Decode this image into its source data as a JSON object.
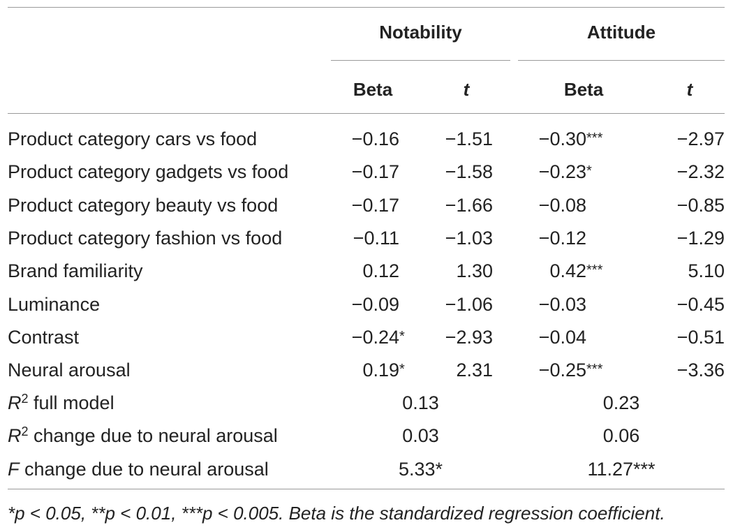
{
  "headers": {
    "groups": [
      "Notability",
      "Attitude"
    ],
    "subcols": [
      "Beta",
      "t",
      "Beta",
      "t"
    ]
  },
  "rows": [
    {
      "label": "Product category cars vs food",
      "n_beta": "−0.16",
      "n_beta_sig": "",
      "n_t": "−1.51",
      "a_beta": "−0.30",
      "a_beta_sig": "***",
      "a_t": "−2.97"
    },
    {
      "label": "Product category gadgets vs food",
      "n_beta": "−0.17",
      "n_beta_sig": "",
      "n_t": "−1.58",
      "a_beta": "−0.23",
      "a_beta_sig": "*",
      "a_t": "−2.32"
    },
    {
      "label": "Product category beauty vs food",
      "n_beta": "−0.17",
      "n_beta_sig": "",
      "n_t": "−1.66",
      "a_beta": "−0.08",
      "a_beta_sig": "",
      "a_t": "−0.85"
    },
    {
      "label": "Product category fashion vs food",
      "n_beta": "−0.11",
      "n_beta_sig": "",
      "n_t": "−1.03",
      "a_beta": "−0.12",
      "a_beta_sig": "",
      "a_t": "−1.29"
    },
    {
      "label": "Brand familiarity",
      "n_beta": "0.12",
      "n_beta_sig": "",
      "n_t": "1.30",
      "a_beta": "0.42",
      "a_beta_sig": "***",
      "a_t": "5.10"
    },
    {
      "label": "Luminance",
      "n_beta": "−0.09",
      "n_beta_sig": "",
      "n_t": "−1.06",
      "a_beta": "−0.03",
      "a_beta_sig": "",
      "a_t": "−0.45"
    },
    {
      "label": "Contrast",
      "n_beta": "−0.24",
      "n_beta_sig": "*",
      "n_t": "−2.93",
      "a_beta": "−0.04",
      "a_beta_sig": "",
      "a_t": "−0.51"
    },
    {
      "label": "Neural arousal",
      "n_beta": "0.19",
      "n_beta_sig": "*",
      "n_t": "2.31",
      "a_beta": "−0.25",
      "a_beta_sig": "***",
      "a_t": "−3.36"
    }
  ],
  "summary": [
    {
      "prefix": "R",
      "sup": "2",
      "rest": " full model",
      "notability": "0.13",
      "attitude": "0.23"
    },
    {
      "prefix": "R",
      "sup": "2",
      "rest": " change due to neural arousal",
      "notability": "0.03",
      "attitude": "0.06"
    },
    {
      "prefix": "F",
      "sup": "",
      "rest": " change due to neural arousal",
      "notability": "5.33*",
      "attitude": "11.27***"
    }
  ],
  "footnote": "*p < 0.05, **p < 0.01, ***p < 0.005. Beta is the standardized regression coefficient."
}
